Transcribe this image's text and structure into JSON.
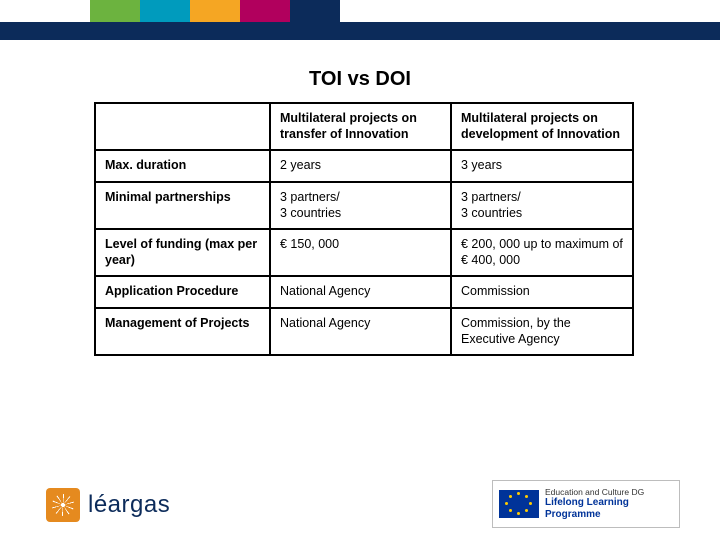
{
  "header_stripe": {
    "dark_bar_color": "#0c2b5a",
    "segments": [
      "#6cb33f",
      "#009bbd",
      "#f5a623",
      "#b1005d",
      "#0c2b5a"
    ]
  },
  "title": "TOI vs DOI",
  "table": {
    "columns": [
      "",
      "Multilateral projects on transfer of Innovation",
      "Multilateral projects on development of Innovation"
    ],
    "rows": [
      {
        "label": "Max. duration",
        "c1": "2 years",
        "c2": "3 years"
      },
      {
        "label": "Minimal partnerships",
        "c1": "3 partners/\n3 countries",
        "c2": "3 partners/\n3 countries"
      },
      {
        "label": "Level of funding (max per year)",
        "c1": "€ 150, 000",
        "c2": "€ 200, 000 up to maximum of € 400, 000"
      },
      {
        "label": "Application Procedure",
        "c1": "National Agency",
        "c2": "Commission"
      },
      {
        "label": "Management of Projects",
        "c1": "National Agency",
        "c2": "Commission, by the Executive Agency"
      }
    ],
    "border_color": "#000000",
    "header_fontweight": "bold",
    "fontsize_pt": 9.5
  },
  "footer": {
    "left_logo_text": "léargas",
    "left_logo_color": "#0c2b5a",
    "left_logo_icon_bg": "#e58a1f",
    "right_logo_line1": "Education and Culture DG",
    "right_logo_line2": "Lifelong Learning Programme",
    "eu_flag_bg": "#003399",
    "eu_star_color": "#ffcc00"
  }
}
